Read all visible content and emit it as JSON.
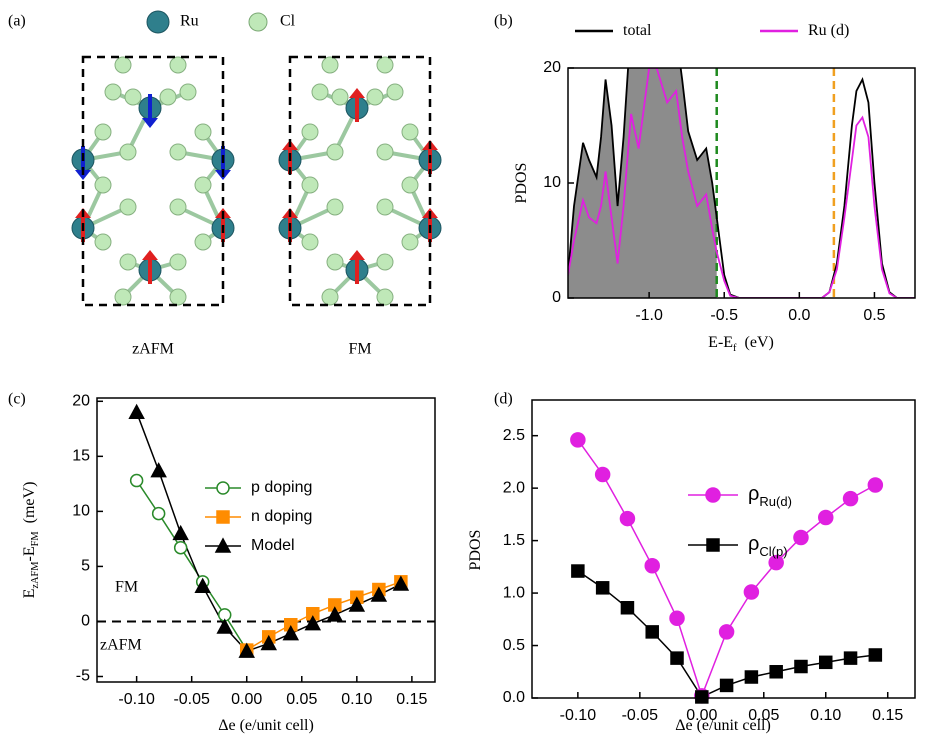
{
  "panel_labels": [
    "(a)",
    "(b)",
    "(c)",
    "(d)"
  ],
  "structure": {
    "legend": [
      "Ru",
      "Cl"
    ],
    "cells": [
      "zAFM",
      "FM"
    ]
  },
  "chart_data": [
    {
      "type": "line",
      "ylabel_parts": [
        {
          "text": "PDOS"
        }
      ],
      "xlabel_parts": [
        {
          "text": "E-E"
        },
        {
          "text": "f",
          "sub": true
        },
        {
          "text": "(eV)"
        }
      ],
      "xlim": [
        -1.54,
        0.77
      ],
      "ylim": [
        0,
        20
      ],
      "xticks": [
        {
          "value": -1.0,
          "label": "-1.0"
        },
        -0.5,
        {
          "value": 0.0,
          "label": "0.0"
        },
        0.5
      ],
      "yticks": [
        0,
        10,
        20
      ],
      "legend": "top-outside",
      "vlines": [
        {
          "x": -0.55,
          "color": "#1f8a1f"
        },
        {
          "x": 0.23,
          "color": "#f0a020"
        }
      ],
      "series": [
        {
          "name": "total",
          "color": "#000000",
          "fill": "#8c8c8c",
          "x": [
            -1.54,
            -1.5,
            -1.44,
            -1.4,
            -1.35,
            -1.32,
            -1.29,
            -1.25,
            -1.21,
            -1.17,
            -1.12,
            -1.07,
            -1.0,
            -0.95,
            -0.88,
            -0.82,
            -0.78,
            -0.74,
            -0.68,
            -0.62,
            -0.58,
            -0.55,
            -0.5,
            -0.46,
            -0.4,
            -0.2,
            0.0,
            0.15,
            0.2,
            0.25,
            0.3,
            0.35,
            0.38,
            0.42,
            0.46,
            0.5,
            0.55,
            0.6,
            0.65,
            0.77
          ],
          "values": [
            2,
            8,
            13.5,
            12,
            10.5,
            14,
            19,
            15,
            8,
            14,
            24,
            24,
            25,
            26,
            24,
            23,
            19,
            14.5,
            12,
            13,
            10,
            7,
            2,
            0.3,
            0,
            0,
            0,
            0,
            0.5,
            3,
            8,
            15,
            18,
            19,
            17,
            10,
            3,
            0.5,
            0,
            0
          ]
        },
        {
          "name": "Ru (d)",
          "color": "#e020e0",
          "x": [
            -1.54,
            -1.5,
            -1.44,
            -1.4,
            -1.35,
            -1.32,
            -1.29,
            -1.25,
            -1.21,
            -1.17,
            -1.12,
            -1.07,
            -1.0,
            -0.95,
            -0.88,
            -0.82,
            -0.78,
            -0.74,
            -0.68,
            -0.62,
            -0.58,
            -0.55,
            -0.5,
            -0.46,
            -0.4,
            -0.2,
            0.0,
            0.15,
            0.2,
            0.25,
            0.3,
            0.35,
            0.38,
            0.42,
            0.46,
            0.5,
            0.55,
            0.6,
            0.65,
            0.77
          ],
          "values": [
            2,
            5,
            8.5,
            7,
            6.5,
            8,
            11,
            7,
            3,
            8,
            16,
            13,
            20,
            20,
            17,
            18,
            14,
            11,
            8,
            9,
            6,
            4,
            1.5,
            0.2,
            0,
            0,
            0,
            0,
            0.5,
            2.5,
            7,
            12,
            15,
            15.7,
            14,
            8,
            2.5,
            0.4,
            0,
            0
          ]
        }
      ]
    },
    {
      "type": "line",
      "ylabel_parts": [
        {
          "text": "E"
        },
        {
          "text": "zAFM",
          "sub": true
        },
        {
          "text": "-E"
        },
        {
          "text": "FM",
          "sub": true
        },
        {
          "text": "(meV)"
        }
      ],
      "xlabel_parts": [
        {
          "text": "Δe (e/unit cell)"
        }
      ],
      "xlim": [
        -0.136,
        0.171
      ],
      "ylim": [
        -5.5,
        20.3
      ],
      "xticks": [
        {
          "value": -0.1,
          "label": "-0.10"
        },
        {
          "value": -0.05,
          "label": "-0.05"
        },
        {
          "value": 0.0,
          "label": "0.00"
        },
        {
          "value": 0.05,
          "label": "0.05"
        },
        {
          "value": 0.1,
          "label": "0.10"
        },
        {
          "value": 0.15,
          "label": "0.15"
        }
      ],
      "yticks": [
        -5,
        0,
        5,
        10,
        15,
        20
      ],
      "hline": 0,
      "legend": "upper-right",
      "annotations": [
        {
          "text": "FM"
        },
        {
          "text": "zAFM"
        }
      ],
      "series": [
        {
          "name": "p doping",
          "color": "#2a8a2a",
          "marker": "open-circle",
          "x": [
            -0.1,
            -0.08,
            -0.06,
            -0.04,
            -0.02,
            0.0
          ],
          "values": [
            12.8,
            9.8,
            6.7,
            3.6,
            0.6,
            -2.6
          ]
        },
        {
          "name": "n doping",
          "color": "#ff8c00",
          "marker": "square",
          "x": [
            0.0,
            0.02,
            0.04,
            0.06,
            0.08,
            0.1,
            0.12,
            0.14
          ],
          "values": [
            -2.6,
            -1.4,
            -0.3,
            0.7,
            1.5,
            2.2,
            2.9,
            3.6
          ]
        },
        {
          "name": "Model",
          "color": "#000000",
          "marker": "triangle",
          "x": [
            -0.1,
            -0.08,
            -0.06,
            -0.04,
            -0.02,
            0.0,
            0.02,
            0.04,
            0.06,
            0.08,
            0.1,
            0.12,
            0.14
          ],
          "values": [
            19.0,
            13.7,
            8.0,
            3.2,
            -0.5,
            -2.7,
            -2.0,
            -1.1,
            -0.2,
            0.6,
            1.5,
            2.4,
            3.4
          ]
        }
      ]
    },
    {
      "type": "line",
      "ylabel_parts": [
        {
          "text": "PDOS"
        }
      ],
      "xlabel_parts": [
        {
          "text": "Δe (e/unit cell)"
        }
      ],
      "xlim": [
        -0.137,
        0.172
      ],
      "ylim": [
        0,
        2.84
      ],
      "xticks": [
        {
          "value": -0.1,
          "label": "-0.10"
        },
        {
          "value": -0.05,
          "label": "-0.05"
        },
        {
          "value": 0.0,
          "label": "0.00"
        },
        {
          "value": 0.05,
          "label": "0.05"
        },
        {
          "value": 0.1,
          "label": "0.10"
        },
        {
          "value": 0.15,
          "label": "0.15"
        }
      ],
      "yticks": [
        {
          "value": 0,
          "label": "0.0"
        },
        0.5,
        {
          "value": 1,
          "label": "1.0"
        },
        1.5,
        {
          "value": 2,
          "label": "2.0"
        },
        2.5
      ],
      "legend": "upper-right",
      "series": [
        {
          "name": "ρ",
          "name_sub": "Ru(d)",
          "color": "#e020e0",
          "marker": "circle",
          "x": [
            -0.1,
            -0.08,
            -0.06,
            -0.04,
            -0.02,
            0.0,
            0.02,
            0.04,
            0.06,
            0.08,
            0.1,
            0.12,
            0.14
          ],
          "values": [
            2.46,
            2.13,
            1.71,
            1.26,
            0.76,
            0.02,
            0.63,
            1.01,
            1.29,
            1.53,
            1.72,
            1.9,
            2.03
          ]
        },
        {
          "name": "ρ",
          "name_sub": "Cl(p)",
          "color": "#000000",
          "marker": "square",
          "x": [
            -0.1,
            -0.08,
            -0.06,
            -0.04,
            -0.02,
            0.0,
            0.02,
            0.04,
            0.06,
            0.08,
            0.1,
            0.12,
            0.14
          ],
          "values": [
            1.21,
            1.05,
            0.86,
            0.63,
            0.38,
            0.01,
            0.12,
            0.2,
            0.25,
            0.3,
            0.34,
            0.38,
            0.41
          ]
        }
      ]
    }
  ]
}
